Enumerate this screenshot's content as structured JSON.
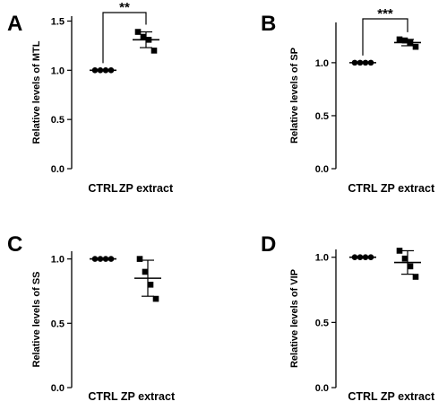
{
  "chart_data": [
    {
      "panel": "A",
      "type": "scatter",
      "ylabel": "Relative levels of MTL",
      "categories": [
        "CTRL",
        "ZP extract"
      ],
      "yticks": [
        "0.0",
        "0.5",
        "1.0",
        "1.5"
      ],
      "ylim": [
        0,
        1.55
      ],
      "points": [
        [
          1.0,
          1.0,
          1.0,
          1.0
        ],
        [
          1.39,
          1.34,
          1.31,
          1.2
        ]
      ],
      "mean": [
        1.0,
        1.31
      ],
      "error": [
        0.0,
        0.08
      ],
      "significance": "**"
    },
    {
      "panel": "B",
      "type": "scatter",
      "ylabel": "Relative levels of SP",
      "categories": [
        "CTRL",
        "ZP extract"
      ],
      "yticks": [
        "0.0",
        "0.5",
        "1.0"
      ],
      "ylim": [
        0,
        1.38
      ],
      "points": [
        [
          1.0,
          1.0,
          1.0,
          1.0
        ],
        [
          1.22,
          1.21,
          1.19,
          1.15
        ]
      ],
      "mean": [
        1.0,
        1.19
      ],
      "error": [
        0.0,
        0.03
      ],
      "significance": "***"
    },
    {
      "panel": "C",
      "type": "scatter",
      "ylabel": "Relative levels of SS",
      "categories": [
        "CTRL",
        "ZP extract"
      ],
      "yticks": [
        "0.0",
        "0.5",
        "1.0"
      ],
      "ylim": [
        0,
        1.06
      ],
      "points": [
        [
          1.0,
          1.0,
          1.0,
          1.0
        ],
        [
          1.0,
          0.9,
          0.8,
          0.69
        ]
      ],
      "mean": [
        1.0,
        0.85
      ],
      "error": [
        0.0,
        0.14
      ],
      "significance": ""
    },
    {
      "panel": "D",
      "type": "scatter",
      "ylabel": "Relative levels of VIP",
      "categories": [
        "CTRL",
        "ZP extract"
      ],
      "yticks": [
        "0.0",
        "0.5",
        "1.0"
      ],
      "ylim": [
        0,
        1.06
      ],
      "points": [
        [
          1.0,
          1.0,
          1.0,
          1.0
        ],
        [
          1.05,
          0.99,
          0.93,
          0.85
        ]
      ],
      "mean": [
        1.0,
        0.96
      ],
      "error": [
        0.0,
        0.09
      ],
      "significance": ""
    }
  ]
}
